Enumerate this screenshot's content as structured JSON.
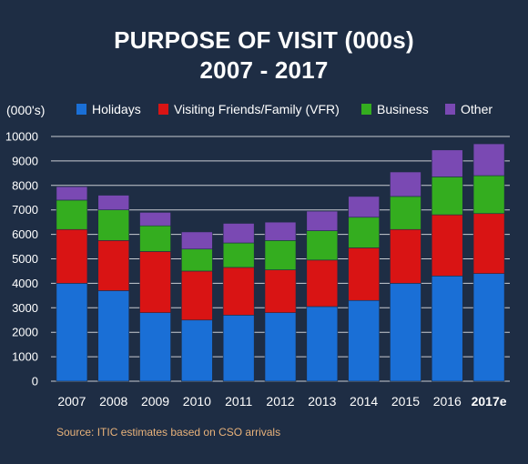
{
  "chart_data": {
    "type": "bar",
    "stacked": true,
    "title": "PURPOSE OF VISIT (000s)",
    "subtitle": "2007 - 2017",
    "ylabel": "(000's)",
    "xlabel": "",
    "categories": [
      "2007",
      "2008",
      "2009",
      "2010",
      "2011",
      "2012",
      "2013",
      "2014",
      "2015",
      "2016",
      "2017e"
    ],
    "series": [
      {
        "name": "Holidays",
        "color": "#1a6fd6",
        "values": [
          4000,
          3700,
          2800,
          2500,
          2700,
          2800,
          3050,
          3300,
          4000,
          4300,
          4400
        ]
      },
      {
        "name": "Visiting Friends/Family (VFR)",
        "color": "#d91414",
        "values": [
          2200,
          2050,
          2500,
          2000,
          1950,
          1750,
          1900,
          2150,
          2200,
          2500,
          2450
        ]
      },
      {
        "name": "Business",
        "color": "#34ad1f",
        "values": [
          1200,
          1250,
          1050,
          900,
          1000,
          1200,
          1200,
          1250,
          1350,
          1550,
          1550
        ]
      },
      {
        "name": "Other",
        "color": "#7a49b3",
        "values": [
          550,
          600,
          550,
          700,
          800,
          750,
          800,
          850,
          1000,
          1100,
          1300
        ]
      }
    ],
    "ylim": [
      0,
      10000
    ],
    "yticks": [
      0,
      1000,
      2000,
      3000,
      4000,
      5000,
      6000,
      7000,
      8000,
      9000,
      10000
    ],
    "grid": true,
    "legend": "top",
    "source": "Source: ITIC estimates based on CSO arrivals"
  }
}
